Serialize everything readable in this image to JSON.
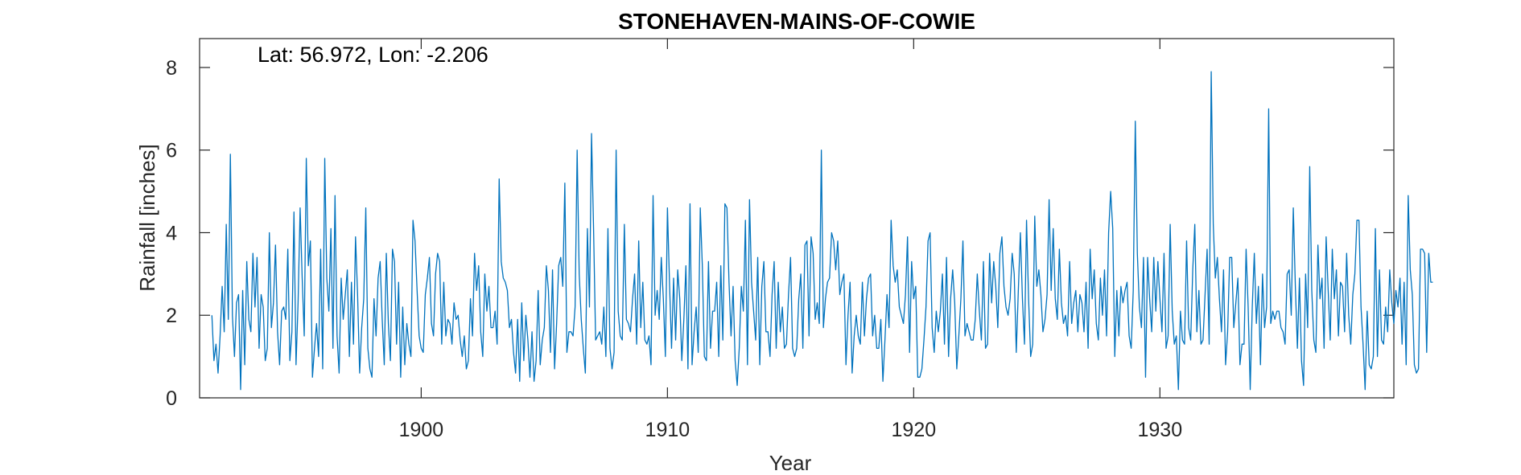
{
  "chart_data": {
    "type": "line",
    "title": "STONEHAVEN-MAINS-OF-COWIE",
    "annotation": "Lat: 56.972, Lon: -2.206",
    "xlabel": "Year",
    "ylabel": "Rainfall [inches]",
    "xlim": [
      1891.0,
      1939.5
    ],
    "ylim": [
      0,
      8.7
    ],
    "xticks": [
      1900,
      1910,
      1920,
      1930
    ],
    "xtick_labels": [
      "1900",
      "1910",
      "1920",
      "1930"
    ],
    "yticks": [
      0,
      2,
      4,
      6,
      8
    ],
    "ytick_labels": [
      "0",
      "2",
      "4",
      "6",
      "8"
    ],
    "grid": false,
    "line_color": "#0072BD",
    "x_start": 1891.5,
    "x_step": 0.0833333,
    "values": [
      2.0,
      0.9,
      1.3,
      0.6,
      1.5,
      2.7,
      1.6,
      4.2,
      1.9,
      5.9,
      2.0,
      1.0,
      2.3,
      2.5,
      0.2,
      2.6,
      0.8,
      3.3,
      1.9,
      1.6,
      3.5,
      2.2,
      3.4,
      1.2,
      2.5,
      2.2,
      0.9,
      1.2,
      4.0,
      1.7,
      2.3,
      3.7,
      1.6,
      0.8,
      2.1,
      2.2,
      1.9,
      3.6,
      0.9,
      1.6,
      4.5,
      0.8,
      2.3,
      4.6,
      2.9,
      1.5,
      5.8,
      3.2,
      3.8,
      0.5,
      1.2,
      1.8,
      1.0,
      3.6,
      0.7,
      5.8,
      2.9,
      2.1,
      4.1,
      1.2,
      4.9,
      1.5,
      0.6,
      2.9,
      1.9,
      2.5,
      3.1,
      1.0,
      2.8,
      1.3,
      3.9,
      2.5,
      0.6,
      1.7,
      2.4,
      4.6,
      1.2,
      0.7,
      0.5,
      2.4,
      1.5,
      2.9,
      3.3,
      1.9,
      0.8,
      3.5,
      1.8,
      0.9,
      3.6,
      3.3,
      1.3,
      2.8,
      0.5,
      2.2,
      0.8,
      1.8,
      1.3,
      1.0,
      4.3,
      3.8,
      2.6,
      1.5,
      1.2,
      1.1,
      2.5,
      2.9,
      3.4,
      1.8,
      1.5,
      3.0,
      3.5,
      3.3,
      1.3,
      2.8,
      1.5,
      1.9,
      1.8,
      1.3,
      2.3,
      1.9,
      2.0,
      1.4,
      1.0,
      1.5,
      0.7,
      0.9,
      2.4,
      1.5,
      3.5,
      2.6,
      3.2,
      1.6,
      1.0,
      3.0,
      2.1,
      2.7,
      1.7,
      1.7,
      2.1,
      1.3,
      5.3,
      3.3,
      2.9,
      2.8,
      2.6,
      1.7,
      1.9,
      1.1,
      0.6,
      1.9,
      0.4,
      2.3,
      0.9,
      2.0,
      1.4,
      0.5,
      1.6,
      0.4,
      0.9,
      2.6,
      0.8,
      1.4,
      1.7,
      3.2,
      2.6,
      1.1,
      3.1,
      0.7,
      1.8,
      3.2,
      3.4,
      2.7,
      5.2,
      1.1,
      1.6,
      1.6,
      1.5,
      2.2,
      6.0,
      3.0,
      1.9,
      1.2,
      0.6,
      4.1,
      2.2,
      6.4,
      4.1,
      1.4,
      1.5,
      1.6,
      1.3,
      2.2,
      1.0,
      4.1,
      1.2,
      0.7,
      1.1,
      6.0,
      2.1,
      1.5,
      1.4,
      4.2,
      1.9,
      1.8,
      1.6,
      2.4,
      3.0,
      1.3,
      3.8,
      1.7,
      2.8,
      1.4,
      1.3,
      1.5,
      0.8,
      4.9,
      2.0,
      2.6,
      1.9,
      3.4,
      2.4,
      1.0,
      4.6,
      2.8,
      1.2,
      2.9,
      1.4,
      3.1,
      2.4,
      0.9,
      1.9,
      3.2,
      0.7,
      4.7,
      0.8,
      1.6,
      2.2,
      1.1,
      4.6,
      3.2,
      1.0,
      0.9,
      3.3,
      1.2,
      2.1,
      2.1,
      2.8,
      1.0,
      3.2,
      1.4,
      4.7,
      4.6,
      2.8,
      1.5,
      2.7,
      0.9,
      0.3,
      1.2,
      2.7,
      2.1,
      4.3,
      0.8,
      4.8,
      2.8,
      2.1,
      1.4,
      3.4,
      0.8,
      2.7,
      3.3,
      1.6,
      1.6,
      1.0,
      2.5,
      3.3,
      1.2,
      2.8,
      1.6,
      2.2,
      1.2,
      1.3,
      2.5,
      3.4,
      1.2,
      1.0,
      1.2,
      2.4,
      3.0,
      1.2,
      3.7,
      3.8,
      1.5,
      3.9,
      3.5,
      1.9,
      2.3,
      1.8,
      6.0,
      1.7,
      2.4,
      2.8,
      2.9,
      4.0,
      3.8,
      3.1,
      3.8,
      2.5,
      2.8,
      3.0,
      0.8,
      2.0,
      2.8,
      0.6,
      1.5,
      2.0,
      1.5,
      1.3,
      2.8,
      1.5,
      2.4,
      2.9,
      3.0,
      1.5,
      2.0,
      1.2,
      1.2,
      1.9,
      0.4,
      1.4,
      2.5,
      1.7,
      4.3,
      3.2,
      2.8,
      3.1,
      2.2,
      2.0,
      1.8,
      2.5,
      3.9,
      1.1,
      3.3,
      2.4,
      2.7,
      0.5,
      0.5,
      0.7,
      1.4,
      2.2,
      3.8,
      4.0,
      1.7,
      1.1,
      2.1,
      1.6,
      2.1,
      3.0,
      1.3,
      3.4,
      1.0,
      2.4,
      3.1,
      2.3,
      0.7,
      1.5,
      2.4,
      3.8,
      1.5,
      1.8,
      1.6,
      1.4,
      1.4,
      1.9,
      3.0,
      2.1,
      1.4,
      3.3,
      1.2,
      1.3,
      3.5,
      2.3,
      3.3,
      2.7,
      1.7,
      3.5,
      3.9,
      2.7,
      2.2,
      2.0,
      2.4,
      3.5,
      3.0,
      1.1,
      2.6,
      4.0,
      2.4,
      1.3,
      4.3,
      2.4,
      1.0,
      1.3,
      4.4,
      2.7,
      3.1,
      2.5,
      1.6,
      1.9,
      2.5,
      4.8,
      2.6,
      4.1,
      2.4,
      1.9,
      3.6,
      2.3,
      1.8,
      2.0,
      1.5,
      3.3,
      1.8,
      2.3,
      2.6,
      1.6,
      2.5,
      2.3,
      1.6,
      2.8,
      1.2,
      3.6,
      2.4,
      3.1,
      1.8,
      1.4,
      2.9,
      2.0,
      3.1,
      1.5,
      4.0,
      5.0,
      4.1,
      1.0,
      2.6,
      1.5,
      2.7,
      2.3,
      2.6,
      2.8,
      1.5,
      1.2,
      2.6,
      6.7,
      3.5,
      2.2,
      1.7,
      3.4,
      0.5,
      3.4,
      2.4,
      1.6,
      3.4,
      2.1,
      3.3,
      2.4,
      1.6,
      3.5,
      1.2,
      1.5,
      4.2,
      2.1,
      1.3,
      1.5,
      0.2,
      2.1,
      1.4,
      1.3,
      3.8,
      1.7,
      1.4,
      3.1,
      4.2,
      1.6,
      2.6,
      1.3,
      1.4,
      2.5,
      3.6,
      1.3,
      7.9,
      4.2,
      2.9,
      3.4,
      2.4,
      1.6,
      3.1,
      0.8,
      1.6,
      3.4,
      3.4,
      1.7,
      2.3,
      2.9,
      0.8,
      1.3,
      1.3,
      3.6,
      2.2,
      0.2,
      2.2,
      3.5,
      1.8,
      2.7,
      0.8,
      3.0,
      1.7,
      2.2,
      7.0,
      1.8,
      2.1,
      1.9,
      2.1,
      2.1,
      1.7,
      1.6,
      1.3,
      3.0,
      3.1,
      2.0,
      4.6,
      2.7,
      1.2,
      2.9,
      0.9,
      0.3,
      3.0,
      1.7,
      5.6,
      2.6,
      1.4,
      1.1,
      3.7,
      2.4,
      2.9,
      1.2,
      3.9,
      2.6,
      1.4,
      3.6,
      2.4,
      3.1,
      1.5,
      2.8,
      2.7,
      1.6,
      3.5,
      2.0,
      1.3,
      2.5,
      3.0,
      4.3,
      4.3,
      2.2,
      1.3,
      0.2,
      2.1,
      0.8,
      0.7,
      1.0,
      4.1,
      1.0,
      3.1,
      1.4,
      1.3,
      2.2,
      1.6,
      3.1,
      2.3,
      1.8,
      2.6,
      2.2,
      2.9,
      1.3,
      2.8,
      0.8,
      4.9,
      3.1,
      2.5,
      0.8,
      0.6,
      0.7,
      3.6,
      3.6,
      3.5,
      1.1,
      3.5,
      2.8,
      2.8
    ]
  }
}
